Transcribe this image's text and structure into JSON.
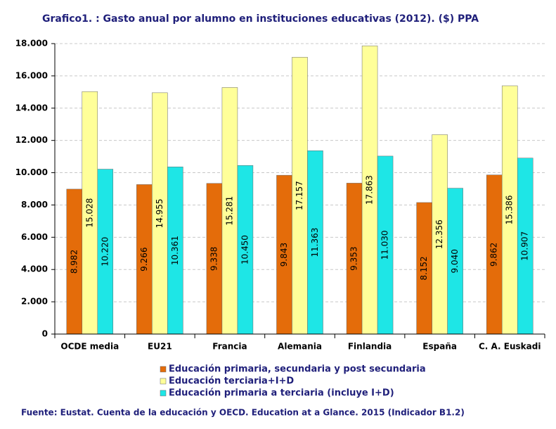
{
  "chart_data": {
    "type": "bar",
    "title": "Grafico1. : Gasto anual por alumno en instituciones  educativas (2012). ($) PPA",
    "source": "Fuente: Eustat. Cuenta de la educación y OECD. Education  at a Glance. 2015 (Indicador B1.2)",
    "categories": [
      "OCDE media",
      "EU21",
      "Francia",
      "Alemania",
      "Finlandia",
      "España",
      "C. A. Euskadi"
    ],
    "series": [
      {
        "name": "Educación primaria, secundaria y post secundaria",
        "color": "#e46c0a",
        "values": [
          8982,
          9266,
          9338,
          9843,
          9353,
          8152,
          9862
        ],
        "value_labels": [
          "8.982",
          "9.266",
          "9.338",
          "9.843",
          "9.353",
          "8.152",
          "9.862"
        ]
      },
      {
        "name": "Educación terciaria+I+D",
        "color": "#ffff99",
        "values": [
          15028,
          14955,
          15281,
          17157,
          17863,
          12356,
          15386
        ],
        "value_labels": [
          "15.028",
          "14.955",
          "15.281",
          "17.157",
          "17.863",
          "12.356",
          "15.386"
        ]
      },
      {
        "name": "Educación primaria a terciaria (incluye I+D)",
        "color": "#1ee6e6",
        "values": [
          10220,
          10361,
          10450,
          11363,
          11030,
          9040,
          10907
        ],
        "value_labels": [
          "10.220",
          "10.361",
          "10.450",
          "11.363",
          "11.030",
          "9.040",
          "10.907"
        ]
      }
    ],
    "ylim": [
      0,
      18000
    ],
    "yticks": [
      0,
      {
        "value": 2000,
        "label": "2.000"
      },
      {
        "value": 4000,
        "label": "4.000"
      },
      {
        "value": 6000,
        "label": "6.000"
      },
      {
        "value": 8000,
        "label": "8.000"
      },
      {
        "value": 10000,
        "label": "10.000"
      },
      {
        "value": 12000,
        "label": "12.000"
      },
      {
        "value": 14000,
        "label": "14.000"
      },
      {
        "value": 16000,
        "label": "16.000"
      },
      {
        "value": 18000,
        "label": "18.000"
      }
    ],
    "grid": true
  }
}
